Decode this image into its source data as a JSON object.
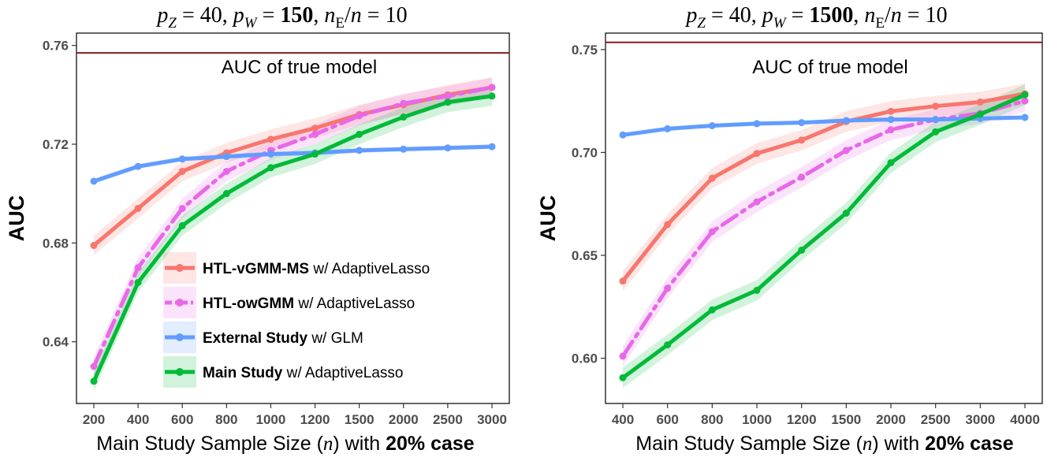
{
  "chart_data": [
    {
      "type": "line",
      "title_parts": [
        "p",
        "Z",
        " = 40, ",
        "p",
        "W",
        " = ",
        "150",
        ", ",
        "n",
        "E",
        "/",
        "n",
        " = 10"
      ],
      "xlabel_parts": [
        "Main Study Sample Size (",
        "n",
        ") with ",
        "20% case"
      ],
      "ylabel": "AUC",
      "categories": [
        "200",
        "400",
        "600",
        "800",
        "1000",
        "1200",
        "1500",
        "2000",
        "2500",
        "3000"
      ],
      "ylim": [
        0.615,
        0.765
      ],
      "yticks": [
        0.64,
        0.68,
        0.72,
        0.76
      ],
      "ytick_labels": [
        "0.64",
        "0.68",
        "0.72",
        "0.76"
      ],
      "reference_line": {
        "label": "AUC of true model",
        "value": 0.757,
        "color": "#8b1a1a"
      },
      "legend_position": "bottom-right",
      "grid": false,
      "series": [
        {
          "name": "HTL-vGMM-MS",
          "name_suffix": " w/ AdaptiveLasso",
          "color": "#f8766d",
          "dash": "solid",
          "values": [
            0.679,
            0.694,
            0.709,
            0.7165,
            0.722,
            0.7265,
            0.732,
            0.736,
            0.74,
            0.743
          ],
          "band": 0.004
        },
        {
          "name": "HTL-owGMM",
          "name_suffix": " w/ AdaptiveLasso",
          "color": "#e868e8",
          "dash": "dashdot",
          "values": [
            0.63,
            0.67,
            0.694,
            0.709,
            0.7175,
            0.724,
            0.7315,
            0.7365,
            0.7395,
            0.743
          ],
          "band": 0.004
        },
        {
          "name": "External Study",
          "name_suffix": " w/ GLM",
          "color": "#619cff",
          "dash": "solid",
          "values": [
            0.705,
            0.711,
            0.714,
            0.715,
            0.716,
            0.7165,
            0.7175,
            0.718,
            0.7185,
            0.719
          ],
          "band": 0.001
        },
        {
          "name": "Main Study",
          "name_suffix": " w/ AdaptiveLasso",
          "color": "#00ba38",
          "dash": "solid",
          "values": [
            0.624,
            0.664,
            0.687,
            0.7,
            0.7105,
            0.716,
            0.724,
            0.731,
            0.737,
            0.7395
          ],
          "band": 0.004
        }
      ]
    },
    {
      "type": "line",
      "title_parts": [
        "p",
        "Z",
        " = 40, ",
        "p",
        "W",
        " = ",
        "1500",
        ", ",
        "n",
        "E",
        "/",
        "n",
        " = 10"
      ],
      "xlabel_parts": [
        "Main Study Sample Size (",
        "n",
        ") with ",
        "20% case"
      ],
      "ylabel": "AUC",
      "categories": [
        "400",
        "600",
        "800",
        "1000",
        "1200",
        "1500",
        "2000",
        "2500",
        "3000",
        "4000"
      ],
      "ylim": [
        0.578,
        0.758
      ],
      "yticks": [
        0.6,
        0.65,
        0.7,
        0.75
      ],
      "ytick_labels": [
        "0.60",
        "0.65",
        "0.70",
        "0.75"
      ],
      "reference_line": {
        "label": "AUC of true model",
        "value": 0.7535,
        "color": "#8b1a1a"
      },
      "legend_position": "none",
      "grid": false,
      "series": [
        {
          "name": "HTL-vGMM-MS",
          "color": "#f8766d",
          "dash": "solid",
          "values": [
            0.6375,
            0.665,
            0.6875,
            0.6995,
            0.706,
            0.715,
            0.72,
            0.7225,
            0.7245,
            0.7285
          ],
          "band": 0.005
        },
        {
          "name": "HTL-owGMM",
          "color": "#e868e8",
          "dash": "dashdot",
          "values": [
            0.601,
            0.634,
            0.6615,
            0.676,
            0.688,
            0.701,
            0.711,
            0.716,
            0.719,
            0.725
          ],
          "band": 0.005
        },
        {
          "name": "External Study",
          "color": "#619cff",
          "dash": "solid",
          "values": [
            0.7085,
            0.7115,
            0.713,
            0.714,
            0.7145,
            0.7155,
            0.716,
            0.716,
            0.7165,
            0.717
          ],
          "band": 0.001
        },
        {
          "name": "Main Study",
          "color": "#00ba38",
          "dash": "solid",
          "values": [
            0.5905,
            0.6065,
            0.6235,
            0.633,
            0.6525,
            0.6705,
            0.695,
            0.71,
            0.7185,
            0.728
          ],
          "band": 0.005
        }
      ]
    }
  ]
}
